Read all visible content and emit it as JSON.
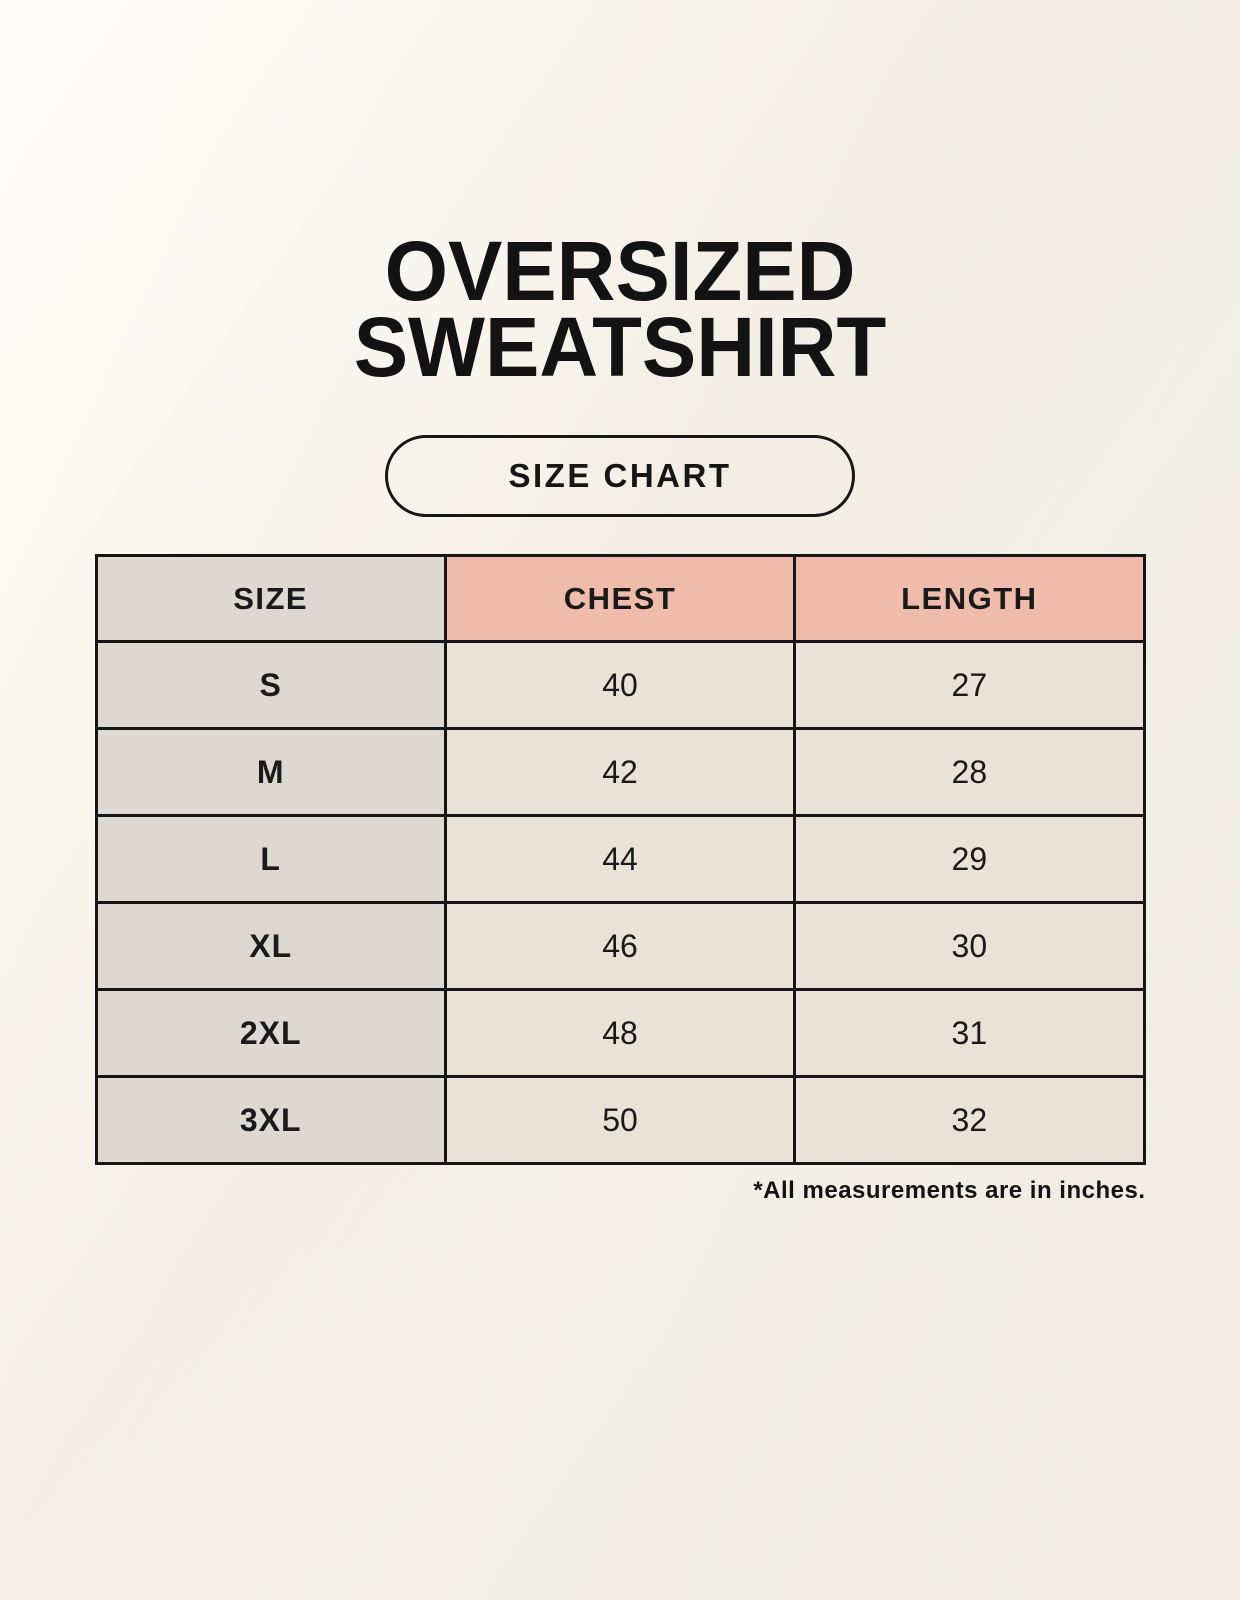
{
  "header": {
    "title_line1": "OVERSIZED",
    "title_line2": "SWEATSHIRT",
    "size_chart_button_label": "SIZE CHART"
  },
  "table": {
    "header": [
      "SIZE",
      "CHEST",
      "LENGTH"
    ],
    "rows": [
      [
        "S",
        "40",
        "27"
      ],
      [
        "M",
        "42",
        "28"
      ],
      [
        "L",
        "44",
        "29"
      ],
      [
        "XL",
        "46",
        "30"
      ],
      [
        "2XL",
        "48",
        "31"
      ],
      [
        "3XL",
        "50",
        "32"
      ]
    ]
  },
  "footnote": "*All measurements are in inches.",
  "colors": {
    "background": "#f5f2ea",
    "size_column_bg": "#ded8d2",
    "measure_header_bg": "#efbbaa",
    "data_cell_bg": "#e9e2d6",
    "border": "#161616",
    "text": "#1a1a1a"
  },
  "chart_data": {
    "type": "table",
    "title": "OVERSIZED SWEATSHIRT SIZE CHART",
    "columns": [
      "SIZE",
      "CHEST",
      "LENGTH"
    ],
    "rows": [
      {
        "size": "S",
        "chest": 40,
        "length": 27
      },
      {
        "size": "M",
        "chest": 42,
        "length": 28
      },
      {
        "size": "L",
        "chest": 44,
        "length": 29
      },
      {
        "size": "XL",
        "chest": 46,
        "length": 30
      },
      {
        "size": "2XL",
        "chest": 48,
        "length": 31
      },
      {
        "size": "3XL",
        "chest": 50,
        "length": 32
      }
    ],
    "units": "inches",
    "note": "*All measurements are in inches."
  }
}
